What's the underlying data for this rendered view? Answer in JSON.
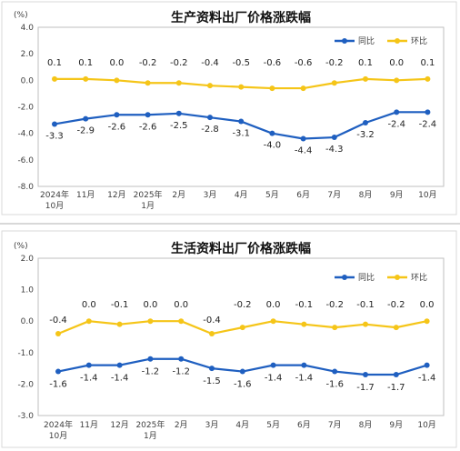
{
  "colors": {
    "yoy": "#1f5fc0",
    "mom": "#f5c518",
    "text": "#404040"
  },
  "chart_data": [
    {
      "type": "line",
      "title": "生产资料出厂价格涨跌幅",
      "unit": "(%)",
      "categories": [
        [
          "2024年",
          "10月"
        ],
        [
          "11月"
        ],
        [
          "12月"
        ],
        [
          "2025年",
          "1月"
        ],
        [
          "2月"
        ],
        [
          "3月"
        ],
        [
          "4月"
        ],
        [
          "5月"
        ],
        [
          "6月"
        ],
        [
          "7月"
        ],
        [
          "8月"
        ],
        [
          "9月"
        ],
        [
          "10月"
        ]
      ],
      "ylim": [
        -8,
        4
      ],
      "yticks": [
        "4.0",
        "2.0",
        "0.0",
        "-2.0",
        "-4.0",
        "-6.0",
        "-8.0"
      ],
      "legend_position": "top-right",
      "series": [
        {
          "name": "同比",
          "color": "#1f5fc0",
          "values": [
            -3.3,
            -2.9,
            -2.6,
            -2.6,
            -2.5,
            -2.8,
            -3.1,
            -4.0,
            -4.4,
            -4.3,
            -3.2,
            -2.4,
            -2.4
          ],
          "labels": [
            "-3.3",
            "-2.9",
            "-2.6",
            "-2.6",
            "-2.5",
            "-2.8",
            "-3.1",
            "-4.0",
            "-4.4",
            "-4.3",
            "-3.2",
            "-2.4",
            "-2.4"
          ]
        },
        {
          "name": "环比",
          "color": "#f5c518",
          "values": [
            0.1,
            0.1,
            0.0,
            -0.2,
            -0.2,
            -0.4,
            -0.5,
            -0.6,
            -0.6,
            -0.2,
            0.1,
            0.0,
            0.1
          ],
          "labels": [
            "0.1",
            "0.1",
            "0.0",
            "-0.2",
            "-0.2",
            "-0.4",
            "-0.5",
            "-0.6",
            "-0.6",
            "-0.2",
            "0.1",
            "0.0",
            "0.1"
          ]
        }
      ]
    },
    {
      "type": "line",
      "title": "生活资料出厂价格涨跌幅",
      "unit": "(%)",
      "categories": [
        [
          "2024年",
          "10月"
        ],
        [
          "11月"
        ],
        [
          "12月"
        ],
        [
          "2025年",
          "1月"
        ],
        [
          "2月"
        ],
        [
          "3月"
        ],
        [
          "4月"
        ],
        [
          "5月"
        ],
        [
          "6月"
        ],
        [
          "7月"
        ],
        [
          "8月"
        ],
        [
          "9月"
        ],
        [
          "10月"
        ]
      ],
      "ylim": [
        -3,
        2
      ],
      "yticks": [
        "2.0",
        "1.0",
        "0.0",
        "-1.0",
        "-2.0",
        "-3.0"
      ],
      "legend_position": "top-right",
      "series": [
        {
          "name": "同比",
          "color": "#1f5fc0",
          "values": [
            -1.6,
            -1.4,
            -1.4,
            -1.2,
            -1.2,
            -1.5,
            -1.6,
            -1.4,
            -1.4,
            -1.6,
            -1.7,
            -1.7,
            -1.4
          ],
          "labels": [
            "-1.6",
            "-1.4",
            "-1.4",
            "-1.2",
            "-1.2",
            "-1.5",
            "-1.6",
            "-1.4",
            "-1.4",
            "-1.6",
            "-1.7",
            "-1.7",
            "-1.4"
          ]
        },
        {
          "name": "环比",
          "color": "#f5c518",
          "values": [
            -0.4,
            0.0,
            -0.1,
            0.0,
            0.0,
            -0.4,
            -0.2,
            0.0,
            -0.1,
            -0.2,
            -0.1,
            -0.2,
            0.0
          ],
          "labels": [
            "-0.4",
            "0.0",
            "-0.1",
            "0.0",
            "0.0",
            "-0.4",
            "-0.2",
            "0.0",
            "-0.1",
            "-0.2",
            "-0.1",
            "-0.2",
            "0.0"
          ]
        }
      ]
    }
  ]
}
